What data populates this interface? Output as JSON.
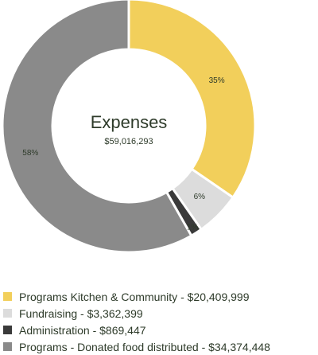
{
  "chart_data": {
    "type": "pie",
    "donut": true,
    "title": "Expenses",
    "total": "$59,016,293",
    "slices": [
      {
        "name": "Programs Kitchen & Community",
        "amount": 20409999,
        "amount_label": "$20,409,999",
        "percent_label": "35%",
        "color": "#f2cf5b"
      },
      {
        "name": "Fundraising",
        "amount": 3362399,
        "amount_label": "$3,362,399",
        "percent_label": "6%",
        "color": "#dcdcdc"
      },
      {
        "name": "Administration",
        "amount": 869447,
        "amount_label": "$869,447",
        "percent_label": "1%",
        "color": "#3a3a3a"
      },
      {
        "name": "Programs - Donated food distributed",
        "amount": 34374448,
        "amount_label": "$34,374,448",
        "percent_label": "58%",
        "color": "#8a8a8a"
      }
    ],
    "legend": [
      "Programs Kitchen & Community - $20,409,999",
      "Fundraising - $3,362,399",
      "Administration - $869,447",
      "Programs - Donated food distributed - $34,374,448"
    ],
    "legend_position": "bottom"
  }
}
